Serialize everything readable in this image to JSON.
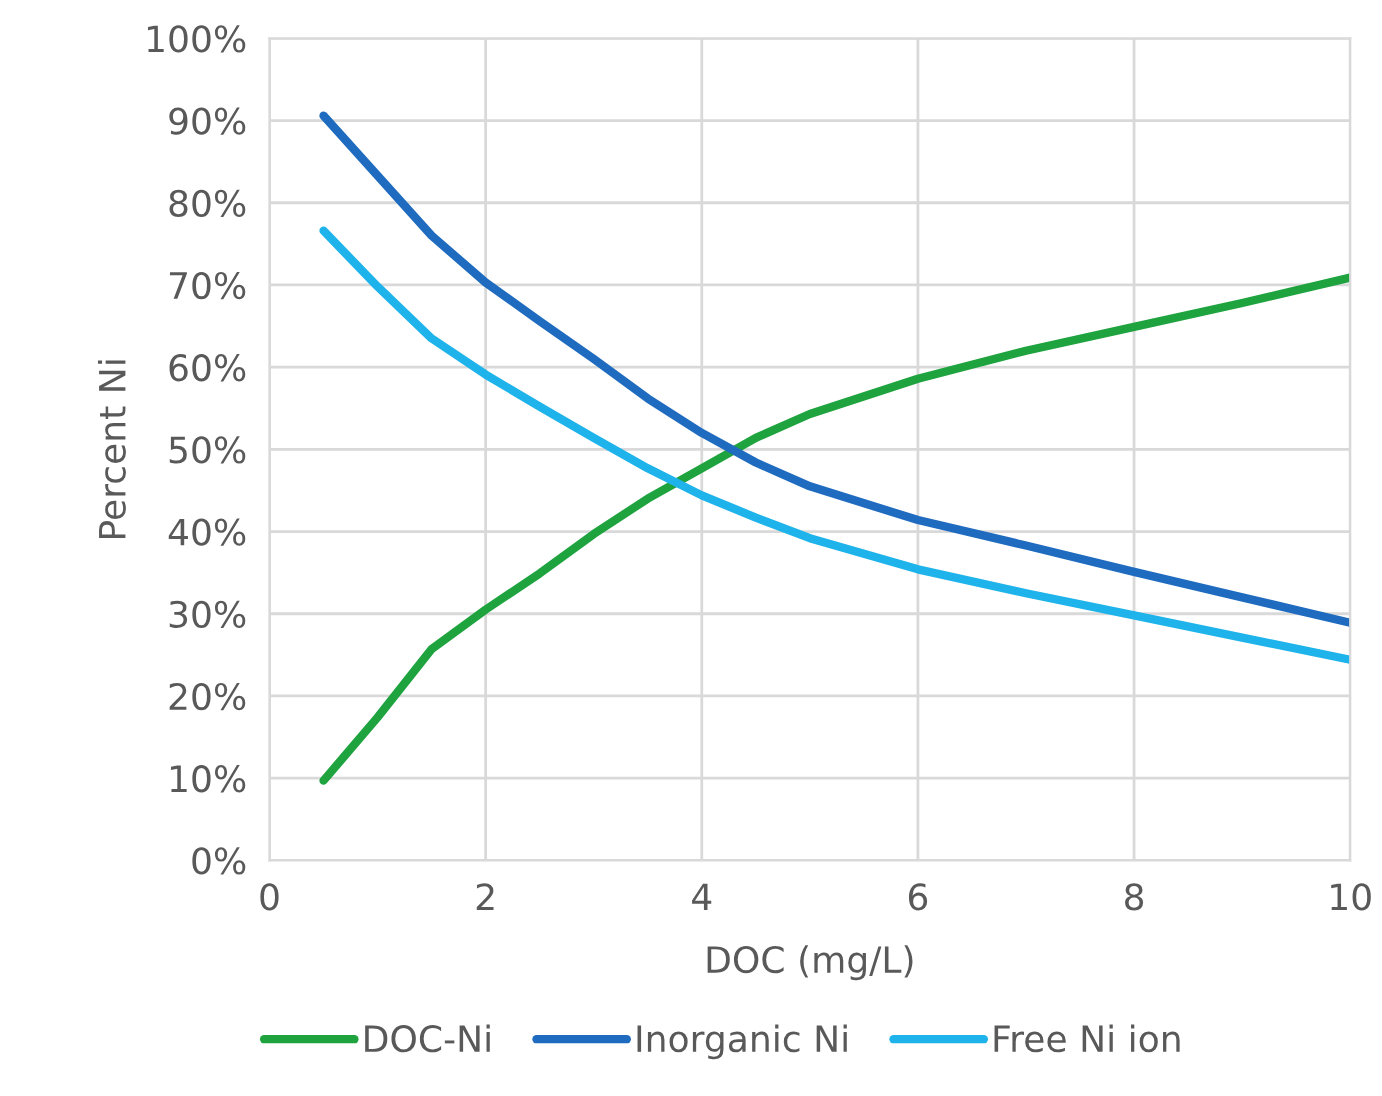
{
  "chart_data": {
    "type": "line",
    "xlabel": "DOC (mg/L)",
    "ylabel": "Percent Ni",
    "x": [
      0.5,
      1,
      1.5,
      2,
      2.5,
      3,
      3.5,
      4,
      4.5,
      5,
      6,
      7,
      8,
      9,
      10
    ],
    "series": [
      {
        "name": "DOC-Ni",
        "color": "#1ea33f",
        "values": [
          9.7,
          17.4,
          25.7,
          30.5,
          34.9,
          39.7,
          44,
          47.7,
          51.4,
          54.3,
          58.6,
          62,
          64.9,
          67.8,
          70.9
        ]
      },
      {
        "name": "Inorganic Ni",
        "color": "#1f6bbf",
        "values": [
          90.6,
          83.3,
          76,
          70.3,
          65.6,
          61,
          56.2,
          52,
          48.4,
          45.5,
          41.4,
          38.3,
          35.1,
          32,
          28.9
        ]
      },
      {
        "name": "Free Ni ion",
        "color": "#1eb3ea",
        "values": [
          76.6,
          69.8,
          63.5,
          59.1,
          55.2,
          51.4,
          47.7,
          44.4,
          41.7,
          39.2,
          35.4,
          32.5,
          29.8,
          27.1,
          24.4
        ]
      }
    ],
    "xlim": [
      0,
      10
    ],
    "xticks": [
      0,
      2,
      4,
      6,
      8,
      10
    ],
    "ylim": [
      0,
      100
    ],
    "yticks": [
      {
        "value": 0,
        "label": "0%"
      },
      {
        "value": 10,
        "label": "10%"
      },
      {
        "value": 20,
        "label": "20%"
      },
      {
        "value": 30,
        "label": "30%"
      },
      {
        "value": 40,
        "label": "40%"
      },
      {
        "value": 50,
        "label": "50%"
      },
      {
        "value": 60,
        "label": "60%"
      },
      {
        "value": 70,
        "label": "70%"
      },
      {
        "value": 80,
        "label": "80%"
      },
      {
        "value": 90,
        "label": "90%"
      },
      {
        "value": 100,
        "label": "100%"
      }
    ],
    "grid": true,
    "legend": "bottom",
    "marker": "none",
    "line_style": "solid"
  }
}
